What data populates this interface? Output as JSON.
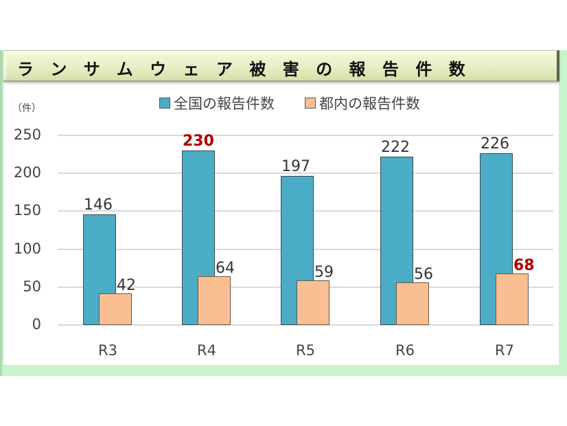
{
  "title": "ランサムウェア被害の報告件数",
  "unit_label": "（件）",
  "legend": [
    {
      "label": "全国の報告件数",
      "color": "#4bacc6"
    },
    {
      "label": "都内の報告件数",
      "color": "#f9bf93"
    }
  ],
  "y_ticks": [
    "0",
    "50",
    "100",
    "150",
    "200",
    "250"
  ],
  "x_labels": [
    "R3",
    "R4",
    "R5",
    "R6",
    "R7"
  ],
  "labels": {
    "nat": [
      "146",
      "230",
      "197",
      "222",
      "226"
    ],
    "tok": [
      "42",
      "64",
      "59",
      "56",
      "68"
    ]
  },
  "highlight_color": "#b00000",
  "chart_data": {
    "type": "bar",
    "title": "ランサムウェア被害の報告件数",
    "xlabel": "",
    "ylabel": "（件）",
    "categories": [
      "R3",
      "R4",
      "R5",
      "R6",
      "R7"
    ],
    "series": [
      {
        "name": "全国の報告件数",
        "values": [
          146,
          230,
          197,
          222,
          226
        ],
        "color": "#4bacc6"
      },
      {
        "name": "都内の報告件数",
        "values": [
          42,
          64,
          59,
          56,
          68
        ],
        "color": "#f9bf93"
      }
    ],
    "highlighted_labels": [
      {
        "series": "全国の報告件数",
        "category": "R4",
        "value": 230
      },
      {
        "series": "都内の報告件数",
        "category": "R7",
        "value": 68
      }
    ],
    "ylim": [
      0,
      250
    ],
    "yticks": [
      0,
      50,
      100,
      150,
      200,
      250
    ],
    "grid": true,
    "legend_position": "top"
  }
}
